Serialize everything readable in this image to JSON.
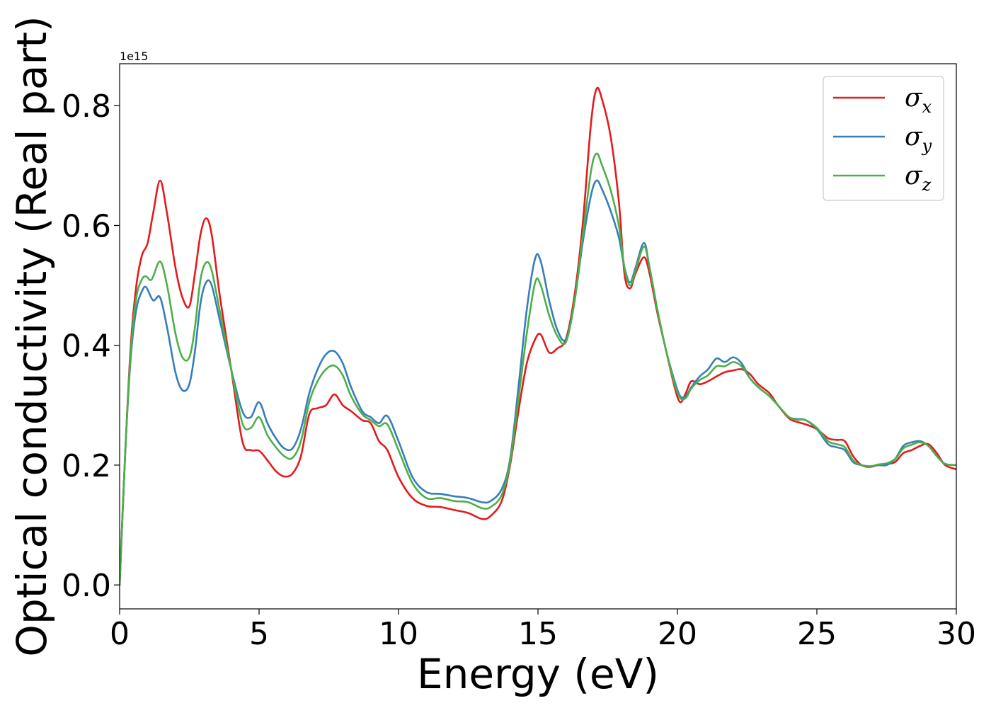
{
  "chart_data": {
    "type": "line",
    "xlabel": "Energy (eV)",
    "ylabel": "Optical conductivity (Real part)",
    "y_offset_label": "1e15",
    "xlim": [
      0,
      30
    ],
    "ylim": [
      -0.04,
      0.87
    ],
    "xticks": [
      0,
      5,
      10,
      15,
      20,
      25,
      30
    ],
    "xtick_labels": [
      "0",
      "5",
      "10",
      "15",
      "20",
      "25",
      "30"
    ],
    "yticks": [
      0.0,
      0.2,
      0.4,
      0.6,
      0.8
    ],
    "ytick_labels": [
      "0.0",
      "0.2",
      "0.4",
      "0.6",
      "0.8"
    ],
    "grid": false,
    "legend_position": "top-right",
    "series": [
      {
        "name": "σx",
        "symbol": "σ",
        "subscript": "x",
        "color": "#e41a1c",
        "x": [
          0,
          0.2,
          0.4,
          0.6,
          0.8,
          1.0,
          1.2,
          1.45,
          1.7,
          2.0,
          2.25,
          2.5,
          2.7,
          2.9,
          3.1,
          3.3,
          3.6,
          4.0,
          4.4,
          4.7,
          5.0,
          5.3,
          5.6,
          5.9,
          6.2,
          6.5,
          6.8,
          7.1,
          7.4,
          7.7,
          8.0,
          8.3,
          8.7,
          9.0,
          9.3,
          9.6,
          10.0,
          10.5,
          11.0,
          11.5,
          12.0,
          12.5,
          13.0,
          13.3,
          13.7,
          14.0,
          14.3,
          14.6,
          14.9,
          15.1,
          15.4,
          15.7,
          16.0,
          16.3,
          16.6,
          16.9,
          17.1,
          17.3,
          17.6,
          17.9,
          18.1,
          18.3,
          18.5,
          18.8,
          19.0,
          19.3,
          19.6,
          19.9,
          20.1,
          20.3,
          20.5,
          20.8,
          21.1,
          21.4,
          21.7,
          22.0,
          22.3,
          22.6,
          22.9,
          23.3,
          23.6,
          24.0,
          24.3,
          24.6,
          25.0,
          25.4,
          25.7,
          26.0,
          26.3,
          26.6,
          26.9,
          27.2,
          27.5,
          27.8,
          28.1,
          28.4,
          28.7,
          29.0,
          29.3,
          29.6,
          30.0
        ],
        "y": [
          0.0,
          0.22,
          0.4,
          0.5,
          0.55,
          0.57,
          0.62,
          0.675,
          0.62,
          0.53,
          0.48,
          0.465,
          0.52,
          0.585,
          0.612,
          0.585,
          0.48,
          0.36,
          0.24,
          0.225,
          0.224,
          0.208,
          0.19,
          0.181,
          0.186,
          0.215,
          0.285,
          0.295,
          0.3,
          0.318,
          0.3,
          0.29,
          0.275,
          0.27,
          0.24,
          0.225,
          0.18,
          0.145,
          0.132,
          0.13,
          0.125,
          0.12,
          0.11,
          0.115,
          0.14,
          0.2,
          0.29,
          0.37,
          0.41,
          0.418,
          0.388,
          0.395,
          0.41,
          0.48,
          0.6,
          0.77,
          0.828,
          0.81,
          0.75,
          0.64,
          0.52,
          0.495,
          0.52,
          0.547,
          0.52,
          0.45,
          0.39,
          0.33,
          0.305,
          0.32,
          0.34,
          0.335,
          0.34,
          0.348,
          0.355,
          0.358,
          0.36,
          0.352,
          0.335,
          0.32,
          0.3,
          0.278,
          0.272,
          0.268,
          0.26,
          0.245,
          0.242,
          0.24,
          0.215,
          0.2,
          0.197,
          0.2,
          0.202,
          0.205,
          0.22,
          0.225,
          0.232,
          0.235,
          0.22,
          0.2,
          0.193
        ]
      },
      {
        "name": "σy",
        "symbol": "σ",
        "subscript": "y",
        "color": "#377eb8",
        "x": [
          0,
          0.2,
          0.4,
          0.6,
          0.8,
          0.95,
          1.2,
          1.45,
          1.7,
          2.0,
          2.25,
          2.5,
          2.7,
          2.9,
          3.1,
          3.3,
          3.6,
          4.0,
          4.4,
          4.7,
          5.0,
          5.3,
          5.6,
          5.9,
          6.2,
          6.5,
          6.8,
          7.1,
          7.4,
          7.7,
          8.0,
          8.3,
          8.7,
          9.0,
          9.3,
          9.6,
          10.0,
          10.5,
          11.0,
          11.5,
          12.0,
          12.5,
          13.0,
          13.3,
          13.7,
          14.0,
          14.3,
          14.6,
          14.9,
          15.1,
          15.4,
          15.7,
          16.0,
          16.3,
          16.6,
          16.9,
          17.1,
          17.3,
          17.6,
          17.9,
          18.1,
          18.3,
          18.5,
          18.8,
          19.0,
          19.3,
          19.6,
          19.9,
          20.1,
          20.3,
          20.5,
          20.8,
          21.1,
          21.4,
          21.7,
          22.0,
          22.3,
          22.6,
          22.9,
          23.3,
          23.6,
          24.0,
          24.3,
          24.6,
          25.0,
          25.4,
          25.7,
          26.0,
          26.3,
          26.6,
          26.9,
          27.2,
          27.5,
          27.8,
          28.1,
          28.4,
          28.7,
          29.0,
          29.3,
          29.6,
          30.0
        ],
        "y": [
          0.0,
          0.22,
          0.38,
          0.46,
          0.49,
          0.497,
          0.475,
          0.48,
          0.43,
          0.355,
          0.325,
          0.335,
          0.39,
          0.47,
          0.505,
          0.5,
          0.44,
          0.36,
          0.29,
          0.28,
          0.305,
          0.27,
          0.245,
          0.228,
          0.228,
          0.26,
          0.32,
          0.36,
          0.385,
          0.39,
          0.37,
          0.33,
          0.29,
          0.28,
          0.27,
          0.282,
          0.24,
          0.18,
          0.155,
          0.152,
          0.148,
          0.145,
          0.138,
          0.14,
          0.16,
          0.21,
          0.33,
          0.46,
          0.545,
          0.54,
          0.475,
          0.425,
          0.41,
          0.47,
          0.57,
          0.65,
          0.675,
          0.66,
          0.625,
          0.58,
          0.53,
          0.505,
          0.53,
          0.571,
          0.53,
          0.455,
          0.39,
          0.34,
          0.315,
          0.315,
          0.33,
          0.348,
          0.36,
          0.378,
          0.372,
          0.38,
          0.37,
          0.345,
          0.33,
          0.315,
          0.3,
          0.28,
          0.277,
          0.275,
          0.26,
          0.235,
          0.23,
          0.225,
          0.205,
          0.2,
          0.198,
          0.2,
          0.2,
          0.21,
          0.232,
          0.238,
          0.24,
          0.232,
          0.215,
          0.202,
          0.2
        ]
      },
      {
        "name": "σz",
        "symbol": "σ",
        "subscript": "z",
        "color": "#4daf4a",
        "x": [
          0,
          0.2,
          0.4,
          0.6,
          0.8,
          0.95,
          1.15,
          1.45,
          1.7,
          2.0,
          2.25,
          2.5,
          2.7,
          2.9,
          3.1,
          3.3,
          3.6,
          4.0,
          4.4,
          4.7,
          5.0,
          5.3,
          5.6,
          5.9,
          6.2,
          6.5,
          6.8,
          7.1,
          7.4,
          7.7,
          8.0,
          8.3,
          8.7,
          9.0,
          9.3,
          9.6,
          10.0,
          10.5,
          11.0,
          11.5,
          12.0,
          12.5,
          13.0,
          13.3,
          13.7,
          14.0,
          14.3,
          14.6,
          14.9,
          15.1,
          15.4,
          15.7,
          16.0,
          16.3,
          16.6,
          16.9,
          17.1,
          17.3,
          17.6,
          17.9,
          18.1,
          18.3,
          18.5,
          18.8,
          19.0,
          19.3,
          19.6,
          19.9,
          20.1,
          20.3,
          20.5,
          20.8,
          21.1,
          21.4,
          21.7,
          22.0,
          22.3,
          22.6,
          22.9,
          23.3,
          23.6,
          24.0,
          24.3,
          24.6,
          25.0,
          25.4,
          25.7,
          26.0,
          26.3,
          26.6,
          26.9,
          27.2,
          27.5,
          27.8,
          28.1,
          28.4,
          28.7,
          29.0,
          29.3,
          29.6,
          30.0
        ],
        "y": [
          0.0,
          0.22,
          0.39,
          0.48,
          0.51,
          0.515,
          0.51,
          0.54,
          0.5,
          0.42,
          0.38,
          0.38,
          0.43,
          0.51,
          0.538,
          0.525,
          0.455,
          0.36,
          0.27,
          0.262,
          0.28,
          0.25,
          0.23,
          0.215,
          0.212,
          0.24,
          0.305,
          0.34,
          0.36,
          0.366,
          0.35,
          0.315,
          0.285,
          0.275,
          0.265,
          0.268,
          0.225,
          0.17,
          0.145,
          0.145,
          0.14,
          0.138,
          0.128,
          0.13,
          0.15,
          0.205,
          0.31,
          0.42,
          0.505,
          0.5,
          0.45,
          0.415,
          0.405,
          0.47,
          0.58,
          0.69,
          0.72,
          0.7,
          0.66,
          0.6,
          0.53,
          0.5,
          0.525,
          0.565,
          0.53,
          0.455,
          0.39,
          0.335,
          0.312,
          0.312,
          0.328,
          0.342,
          0.35,
          0.365,
          0.365,
          0.372,
          0.365,
          0.345,
          0.33,
          0.315,
          0.3,
          0.28,
          0.276,
          0.275,
          0.262,
          0.24,
          0.235,
          0.23,
          0.208,
          0.2,
          0.198,
          0.201,
          0.203,
          0.21,
          0.228,
          0.234,
          0.238,
          0.232,
          0.215,
          0.202,
          0.2
        ]
      }
    ]
  }
}
